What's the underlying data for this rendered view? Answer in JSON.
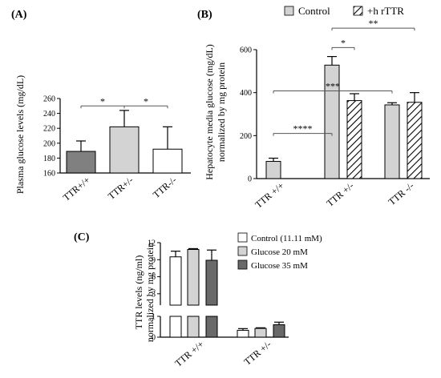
{
  "chart_data": [
    {
      "panel": "(A)",
      "type": "bar",
      "ylabel": "Plasma glucose levels (mg/dL)",
      "ylim": [
        160,
        260
      ],
      "yticks": [
        160,
        180,
        200,
        220,
        240,
        260
      ],
      "categories": [
        "TTR+/+",
        "TTR+/-",
        "TTR-/-"
      ],
      "values": [
        189,
        222,
        192
      ],
      "errors": [
        14,
        22,
        30
      ],
      "bar_colors": [
        "#808080",
        "#d3d3d3",
        "#ffffff"
      ],
      "significance": [
        {
          "from": 0,
          "to": 1,
          "label": "*",
          "y": 250
        },
        {
          "from": 1,
          "to": 2,
          "label": "*",
          "y": 250
        }
      ]
    },
    {
      "panel": "(B)",
      "type": "bar",
      "ylabel": "Hepatocyte media glucose (mg/dL)",
      "ylabel2": "normalized by mg protein",
      "ylim": [
        0,
        600
      ],
      "yticks": [
        0,
        200,
        400,
        600
      ],
      "categories": [
        "TTR +/+",
        "TTR +/-",
        "TTR -/-"
      ],
      "series": [
        {
          "name": "Control",
          "values": [
            80,
            528,
            343
          ],
          "errors": [
            15,
            40,
            10
          ],
          "fill": "#d3d3d3",
          "hatch": false
        },
        {
          "name": "+h rTTR",
          "values": [
            null,
            363,
            355
          ],
          "errors": [
            null,
            32,
            45
          ],
          "fill": "#ffffff",
          "hatch": true
        }
      ],
      "significance": [
        {
          "label": "****",
          "y": 210,
          "from": "TTR +/+ Control",
          "to": "TTR +/- Control"
        },
        {
          "label": "***",
          "y": 408,
          "from": "TTR +/+ Control",
          "to": "TTR -/- Control"
        },
        {
          "label": "*",
          "y": 610,
          "from": "TTR +/- Control",
          "to": "TTR +/- +h rTTR"
        },
        {
          "label": "**",
          "y": 700,
          "from": "TTR +/- Control",
          "to": "TTR -/- +h rTTR"
        }
      ]
    },
    {
      "panel": "(C)",
      "type": "bar",
      "ylabel": "TTR levels (ng/ml)",
      "ylabel2": "normalized by mg protein",
      "axis_break": true,
      "upper_ylim": [
        1,
        12
      ],
      "upper_yticks": [
        3,
        6,
        9,
        12
      ],
      "lower_ylim": [
        0,
        1
      ],
      "lower_yticks": [
        0,
        1
      ],
      "categories": [
        "TTR +/+",
        "TTR +/-"
      ],
      "series": [
        {
          "name": "Control (11.11 mM)",
          "values": [
            9.5,
            0.33
          ],
          "errors": [
            1.0,
            0.08
          ],
          "fill": "#ffffff"
        },
        {
          "name": "Glucose 20 mM",
          "values": [
            10.8,
            0.42
          ],
          "errors": [
            0.15,
            0.03
          ],
          "fill": "#d3d3d3"
        },
        {
          "name": "Glucose 35 mM",
          "values": [
            8.9,
            0.6
          ],
          "errors": [
            1.8,
            0.12
          ],
          "fill": "#696969"
        }
      ]
    }
  ]
}
